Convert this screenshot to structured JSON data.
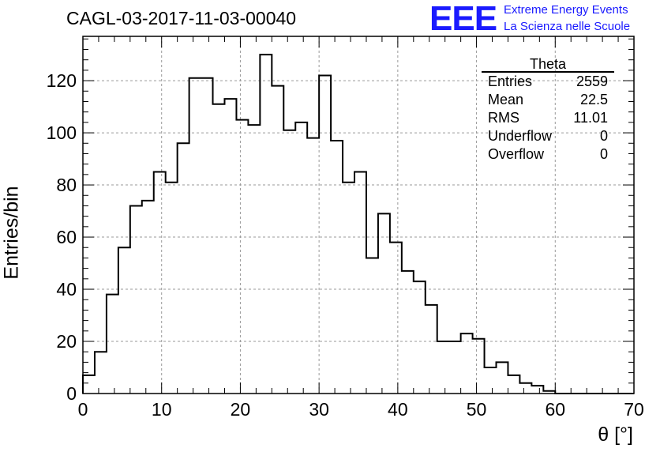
{
  "chart_title": "CAGL-03-2017-11-03-00040",
  "brand": {
    "logo": "EEE",
    "line1": "Extreme Energy Events",
    "line2": "La Scienza nelle Scuole",
    "color": "#1a1aff"
  },
  "stats": {
    "title": "Theta",
    "rows": [
      {
        "label": "Entries",
        "value": "2559"
      },
      {
        "label": "Mean",
        "value": "22.5"
      },
      {
        "label": "RMS",
        "value": "11.01"
      },
      {
        "label": "Underflow",
        "value": "0"
      },
      {
        "label": "Overflow",
        "value": "0"
      }
    ]
  },
  "chart_data": {
    "type": "bar",
    "title": "CAGL-03-2017-11-03-00040",
    "xlabel": "θ [°]",
    "ylabel": "Entries/bin",
    "xlim": [
      0,
      70
    ],
    "ylim": [
      0,
      137
    ],
    "bin_width": 1.5,
    "values": [
      7,
      16,
      38,
      56,
      72,
      74,
      85,
      81,
      96,
      121,
      121,
      111,
      113,
      105,
      103,
      130,
      118,
      101,
      104,
      98,
      122,
      97,
      81,
      85,
      52,
      69,
      58,
      47,
      43,
      34,
      20,
      20,
      23,
      21,
      10,
      12,
      7,
      4,
      3,
      1,
      0,
      0,
      0,
      0,
      0,
      0,
      0
    ],
    "xticks": [
      0,
      10,
      20,
      30,
      40,
      50,
      60,
      70
    ],
    "yticks": [
      0,
      20,
      40,
      60,
      80,
      100,
      120
    ],
    "grid": true,
    "line_color": "#000000"
  }
}
